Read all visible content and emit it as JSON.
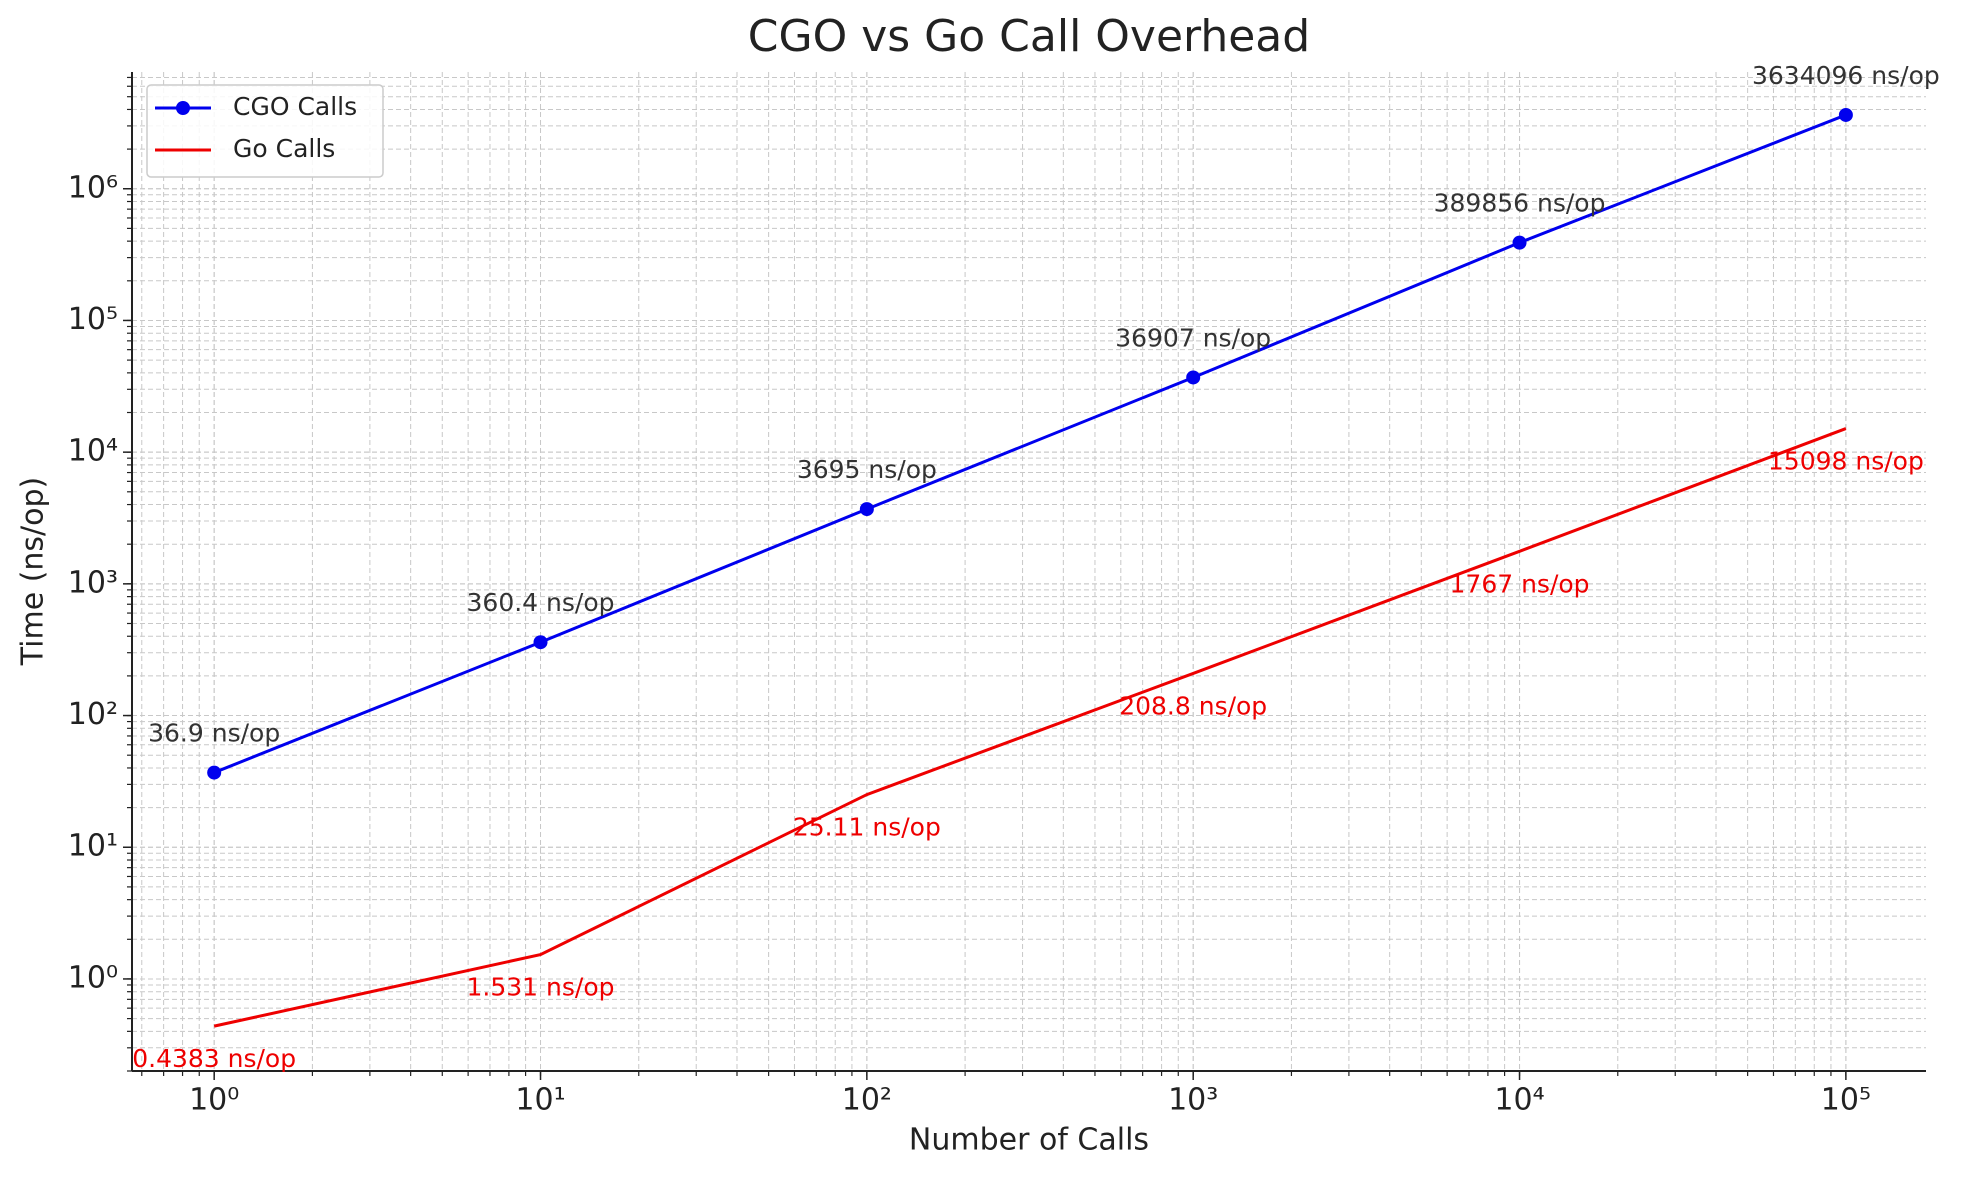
{
  "chart_data": {
    "type": "line",
    "title": "CGO vs Go Call Overhead",
    "x_label": "Number of Calls",
    "y_label": "Time (ns/op)",
    "x": [
      1,
      10,
      100,
      1000,
      10000,
      100000
    ],
    "series": [
      {
        "name": "CGO Calls",
        "color": "#0000ee",
        "marker": true,
        "label_color": "#333333",
        "label_side": "above",
        "values": [
          36.9,
          360.4,
          3695,
          36907,
          389856,
          3634096
        ],
        "value_labels": [
          "36.9 ns/op",
          "360.4 ns/op",
          "3695 ns/op",
          "36907 ns/op",
          "389856 ns/op",
          "3634096 ns/op"
        ]
      },
      {
        "name": "Go Calls",
        "color": "#ee0000",
        "marker": false,
        "label_color": "#ee0000",
        "label_side": "below",
        "values": [
          0.4383,
          1.531,
          25.11,
          208.8,
          1767,
          15098
        ],
        "value_labels": [
          "0.4383 ns/op",
          "1.531 ns/op",
          "25.11 ns/op",
          "208.8 ns/op",
          "1767 ns/op",
          "15098 ns/op"
        ]
      }
    ],
    "xscale": "log",
    "yscale": "log",
    "xlim": [
      0.56,
      176000
    ],
    "ylim": [
      0.2,
      7700000
    ],
    "xticks": [
      {
        "value": 1,
        "label": "10⁰"
      },
      {
        "value": 10,
        "label": "10¹"
      },
      {
        "value": 100,
        "label": "10²"
      },
      {
        "value": 1000,
        "label": "10³"
      },
      {
        "value": 10000,
        "label": "10⁴"
      },
      {
        "value": 100000,
        "label": "10⁵"
      }
    ],
    "yticks": [
      {
        "value": 1,
        "label": "10⁰"
      },
      {
        "value": 10,
        "label": "10¹"
      },
      {
        "value": 100,
        "label": "10²"
      },
      {
        "value": 1000,
        "label": "10³"
      },
      {
        "value": 10000,
        "label": "10⁴"
      },
      {
        "value": 100000,
        "label": "10⁵"
      },
      {
        "value": 1000000,
        "label": "10⁶"
      }
    ],
    "grid": true,
    "legend": "upper-left"
  }
}
